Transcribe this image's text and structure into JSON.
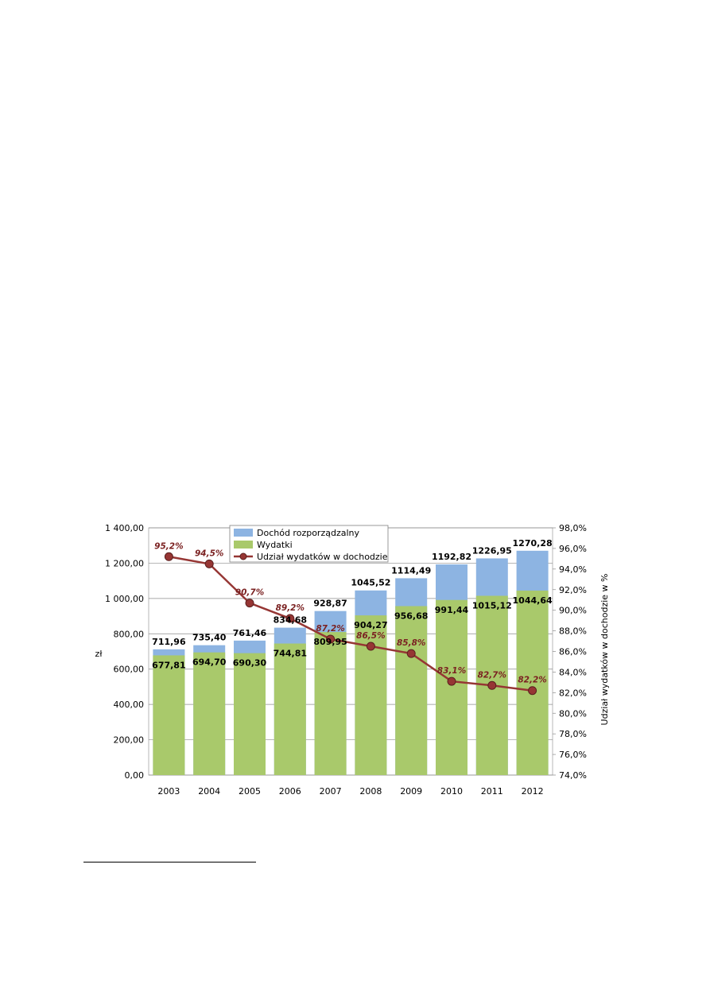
{
  "chart_data": {
    "type": "bar",
    "stacked_overlay": true,
    "categories": [
      "2003",
      "2004",
      "2005",
      "2006",
      "2007",
      "2008",
      "2009",
      "2010",
      "2011",
      "2012"
    ],
    "series": [
      {
        "name": "Dochód rozporządzalny",
        "axis": "left",
        "color": "#8db4e2",
        "values": [
          711.96,
          735.4,
          761.46,
          834.68,
          928.87,
          1045.52,
          1114.49,
          1192.82,
          1226.95,
          1270.28
        ],
        "labels": [
          "711,96",
          "735,40",
          "761,46",
          "834,68",
          "928,87",
          "1045,52",
          "1114,49",
          "1192,82",
          "1226,95",
          "1270,28"
        ]
      },
      {
        "name": "Wydatki",
        "axis": "left",
        "color": "#a9c96b",
        "values": [
          677.81,
          694.7,
          690.3,
          744.81,
          809.95,
          904.27,
          956.68,
          991.44,
          1015.12,
          1044.64
        ],
        "labels": [
          "677,81",
          "694,70",
          "690,30",
          "744,81",
          "809,95",
          "904,27",
          "956,68",
          "991,44",
          "1015,12",
          "1044,64"
        ]
      },
      {
        "name": "Udział wydatków w dochodzie",
        "axis": "right",
        "type": "line",
        "color": "#963634",
        "values": [
          95.2,
          94.5,
          90.7,
          89.2,
          87.2,
          86.5,
          85.8,
          83.1,
          82.7,
          82.2
        ],
        "labels": [
          "95,2%",
          "94,5%",
          "90,7%",
          "89,2%",
          "87,2%",
          "86,5%",
          "85,8%",
          "83,1%",
          "82,7%",
          "82,2%"
        ]
      }
    ],
    "ylim": [
      0,
      1400
    ],
    "y_ticks": [
      "0,00",
      "200,00",
      "400,00",
      "600,00",
      "800,00",
      "1 000,00",
      "1 200,00",
      "1 400,00"
    ],
    "ylabel": "zł",
    "y2lim": [
      74,
      98
    ],
    "y2_ticks": [
      "74,0%",
      "76,0%",
      "78,0%",
      "80,0%",
      "82,0%",
      "84,0%",
      "86,0%",
      "88,0%",
      "90,0%",
      "92,0%",
      "94,0%",
      "96,0%",
      "98,0%"
    ],
    "y2label": "Udział wydatków w dochodzie w %",
    "grid": true,
    "legend_position": "top-center"
  }
}
